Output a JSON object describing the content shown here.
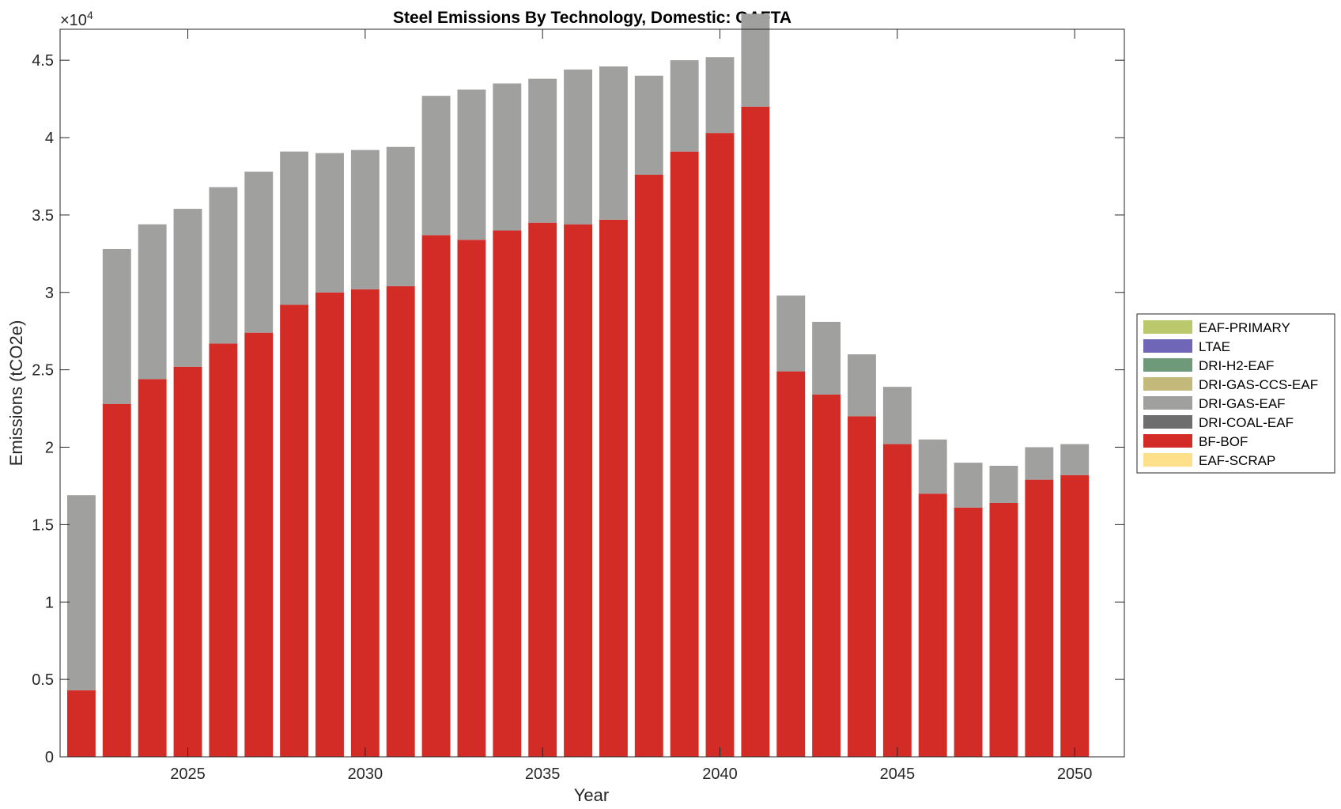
{
  "chart_data": {
    "type": "bar",
    "stacked": true,
    "title": "Steel Emissions By Technology, Domestic: GAFTA",
    "xlabel": "Year",
    "ylabel": "Emissions (tCO2e)",
    "y_multiplier_base": "×10",
    "y_multiplier_exp": "4",
    "xlim": [
      2021.4,
      2051.4
    ],
    "ylim": [
      0,
      4.7
    ],
    "xticks": [
      2025,
      2030,
      2035,
      2040,
      2045,
      2050
    ],
    "xtick_labels": [
      "2025",
      "2030",
      "2035",
      "2040",
      "2045",
      "2050"
    ],
    "yticks": [
      0,
      0.5,
      1,
      1.5,
      2,
      2.5,
      3,
      3.5,
      4,
      4.5
    ],
    "ytick_labels": [
      "0",
      "0.5",
      "1",
      "1.5",
      "2",
      "2.5",
      "3",
      "3.5",
      "4",
      "4.5"
    ],
    "legend_position": "east-outside",
    "categories": [
      2022,
      2023,
      2024,
      2025,
      2026,
      2027,
      2028,
      2029,
      2030,
      2031,
      2032,
      2033,
      2034,
      2035,
      2036,
      2037,
      2038,
      2039,
      2040,
      2041,
      2042,
      2043,
      2044,
      2045,
      2046,
      2047,
      2048,
      2049,
      2050
    ],
    "series": [
      {
        "name": "EAF-SCRAP",
        "color": "#FFE08A",
        "values": [
          0,
          0,
          0,
          0,
          0,
          0,
          0,
          0,
          0,
          0,
          0,
          0,
          0,
          0,
          0,
          0,
          0,
          0,
          0,
          0,
          0,
          0,
          0,
          0,
          0,
          0,
          0,
          0,
          0
        ]
      },
      {
        "name": "BF-BOF",
        "color": "#D32B25",
        "values": [
          0.43,
          2.28,
          2.44,
          2.52,
          2.67,
          2.74,
          2.92,
          3.0,
          3.02,
          3.04,
          3.37,
          3.34,
          3.4,
          3.45,
          3.44,
          3.47,
          3.76,
          3.91,
          4.03,
          4.2,
          2.49,
          2.34,
          2.2,
          2.02,
          1.7,
          1.61,
          1.64,
          1.79,
          1.82
        ]
      },
      {
        "name": "DRI-COAL-EAF",
        "color": "#6E6E6E",
        "values": [
          0,
          0,
          0,
          0,
          0,
          0,
          0,
          0,
          0,
          0,
          0,
          0,
          0,
          0,
          0,
          0,
          0,
          0,
          0,
          0,
          0,
          0,
          0,
          0,
          0,
          0,
          0,
          0,
          0
        ]
      },
      {
        "name": "DRI-GAS-EAF",
        "color": "#A0A09F",
        "values": [
          1.26,
          1.0,
          1.0,
          1.02,
          1.01,
          1.04,
          0.99,
          0.9,
          0.9,
          0.9,
          0.9,
          0.97,
          0.95,
          0.93,
          1.0,
          0.99,
          0.64,
          0.59,
          0.49,
          0.6,
          0.49,
          0.47,
          0.4,
          0.37,
          0.35,
          0.29,
          0.24,
          0.21,
          0.2
        ]
      },
      {
        "name": "DRI-GAS-CCS-EAF",
        "color": "#C3B97A",
        "values": [
          0,
          0,
          0,
          0,
          0,
          0,
          0,
          0,
          0,
          0,
          0,
          0,
          0,
          0,
          0,
          0,
          0,
          0,
          0,
          0,
          0,
          0,
          0,
          0,
          0,
          0,
          0,
          0,
          0
        ]
      },
      {
        "name": "DRI-H2-EAF",
        "color": "#6E9A7A",
        "values": [
          0,
          0,
          0,
          0,
          0,
          0,
          0,
          0,
          0,
          0,
          0,
          0,
          0,
          0,
          0,
          0,
          0,
          0,
          0,
          0,
          0,
          0,
          0,
          0,
          0,
          0,
          0,
          0,
          0
        ]
      },
      {
        "name": "LTAE",
        "color": "#6F66B8",
        "values": [
          0,
          0,
          0,
          0,
          0,
          0,
          0,
          0,
          0,
          0,
          0,
          0,
          0,
          0,
          0,
          0,
          0,
          0,
          0,
          0,
          0,
          0,
          0,
          0,
          0,
          0,
          0,
          0,
          0
        ]
      },
      {
        "name": "EAF-PRIMARY",
        "color": "#BCC86C",
        "values": [
          0,
          0,
          0,
          0,
          0,
          0,
          0,
          0,
          0,
          0,
          0,
          0,
          0,
          0,
          0,
          0,
          0,
          0,
          0,
          0,
          0,
          0,
          0,
          0,
          0,
          0,
          0,
          0,
          0
        ]
      }
    ],
    "legend_order": [
      "EAF-PRIMARY",
      "LTAE",
      "DRI-H2-EAF",
      "DRI-GAS-CCS-EAF",
      "DRI-GAS-EAF",
      "DRI-COAL-EAF",
      "BF-BOF",
      "EAF-SCRAP"
    ]
  }
}
